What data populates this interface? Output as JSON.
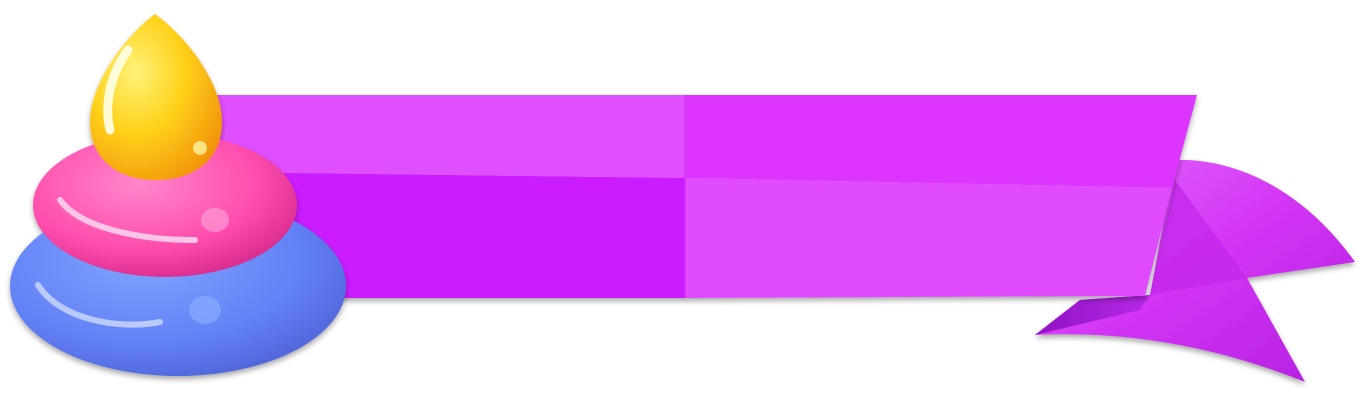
{
  "banner": {
    "label": "",
    "colors": {
      "ribbon_light": "#E050FF",
      "ribbon_mid": "#DC3CFF",
      "ribbon_dark": "#CB1FFF",
      "tail_light": "#E04CF5",
      "tail_dark": "#A315D0",
      "drop_yellow": "#FFD21A",
      "drop_orange": "#F2A20C",
      "blob_pink": "#FF4FAE",
      "blob_pink_dark": "#D11F86",
      "blob_blue": "#6C8CFF",
      "blob_blue_dark": "#4A5ED8"
    }
  },
  "icons": {
    "candy_stack": "candy-stack-icon",
    "ribbon_tail": "ribbon-tail"
  }
}
